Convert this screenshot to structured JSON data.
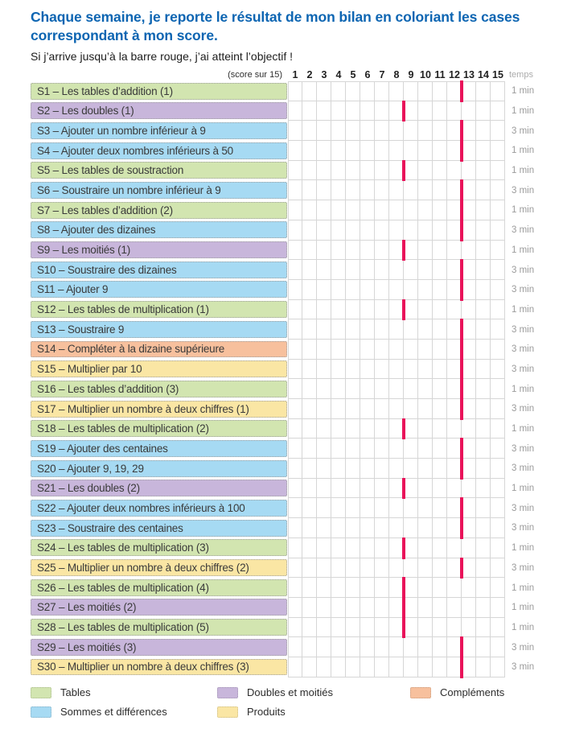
{
  "header": {
    "title": "Chaque semaine, je reporte le résultat de mon bilan en coloriant les cases correspondant à mon score.",
    "subtitle": "Si j’arrive jusqu’à la barre rouge, j’ai atteint l’objectif !",
    "score_label": "(score sur 15)",
    "columns": [
      "1",
      "2",
      "3",
      "4",
      "5",
      "6",
      "7",
      "8",
      "9",
      "10",
      "11",
      "12",
      "13",
      "14",
      "15"
    ],
    "time_header": "temps"
  },
  "colors": {
    "title_blue": "#0d65b2",
    "target_bar_red": "#e9125a",
    "grid_line": "#d6d6d6"
  },
  "categories": {
    "tables": {
      "label": "Tables",
      "color": "#d2e5b0"
    },
    "sommes": {
      "label": "Sommes et différences",
      "color": "#a6daf3"
    },
    "doubles": {
      "label": "Doubles et moitiés",
      "color": "#c8b6db"
    },
    "produits": {
      "label": "Produits",
      "color": "#fae6a4"
    },
    "complements": {
      "label": "Compléments",
      "color": "#f7c09d"
    }
  },
  "rows": [
    {
      "label": "S1 – Les tables d’addition (1)",
      "category": "tables",
      "target": 12,
      "time": "1 min"
    },
    {
      "label": "S2 – Les doubles (1)",
      "category": "doubles",
      "target": 8,
      "time": "1 min"
    },
    {
      "label": "S3 – Ajouter un nombre inférieur à 9",
      "category": "sommes",
      "target": 12,
      "time": "3 min"
    },
    {
      "label": "S4 – Ajouter deux nombres inférieurs à 50",
      "category": "sommes",
      "target": 12,
      "time": "1 min"
    },
    {
      "label": "S5 – Les tables de soustraction",
      "category": "tables",
      "target": 8,
      "time": "1 min"
    },
    {
      "label": "S6 – Soustraire un nombre inférieur à 9",
      "category": "sommes",
      "target": 12,
      "time": "3 min"
    },
    {
      "label": "S7 – Les tables d’addition (2)",
      "category": "tables",
      "target": 12,
      "time": "1 min"
    },
    {
      "label": "S8 – Ajouter des dizaines",
      "category": "sommes",
      "target": 12,
      "time": "3 min"
    },
    {
      "label": "S9 – Les moitiés (1)",
      "category": "doubles",
      "target": 8,
      "time": "1 min"
    },
    {
      "label": "S10 – Soustraire des dizaines",
      "category": "sommes",
      "target": 12,
      "time": "3 min"
    },
    {
      "label": "S11 – Ajouter 9",
      "category": "sommes",
      "target": 12,
      "time": "3 min"
    },
    {
      "label": "S12 – Les tables de multiplication (1)",
      "category": "tables",
      "target": 8,
      "time": "1 min"
    },
    {
      "label": "S13 – Soustraire 9",
      "category": "sommes",
      "target": 12,
      "time": "3 min"
    },
    {
      "label": "S14 – Compléter à la dizaine supérieure",
      "category": "complements",
      "target": 12,
      "time": "3 min"
    },
    {
      "label": "S15 – Multiplier par 10",
      "category": "produits",
      "target": 12,
      "time": "3 min"
    },
    {
      "label": "S16 – Les tables d’addition (3)",
      "category": "tables",
      "target": 12,
      "time": "1 min"
    },
    {
      "label": "S17 – Multiplier un nombre à deux chiffres (1)",
      "category": "produits",
      "target": 12,
      "time": "3 min"
    },
    {
      "label": "S18 – Les tables de multiplication (2)",
      "category": "tables",
      "target": 8,
      "time": "1 min"
    },
    {
      "label": "S19 – Ajouter des centaines",
      "category": "sommes",
      "target": 12,
      "time": "3 min"
    },
    {
      "label": "S20 – Ajouter 9, 19, 29",
      "category": "sommes",
      "target": 12,
      "time": "3 min"
    },
    {
      "label": "S21 – Les doubles (2)",
      "category": "doubles",
      "target": 8,
      "time": "1 min"
    },
    {
      "label": "S22 – Ajouter deux nombres inférieurs à 100",
      "category": "sommes",
      "target": 12,
      "time": "3 min"
    },
    {
      "label": "S23 – Soustraire des centaines",
      "category": "sommes",
      "target": 12,
      "time": "3 min"
    },
    {
      "label": "S24 – Les tables de multiplication (3)",
      "category": "tables",
      "target": 8,
      "time": "1 min"
    },
    {
      "label": "S25 – Multiplier un nombre à deux chiffres (2)",
      "category": "produits",
      "target": 12,
      "time": "3 min"
    },
    {
      "label": "S26 – Les tables de multiplication (4)",
      "category": "tables",
      "target": 8,
      "time": "1 min"
    },
    {
      "label": "S27 – Les moitiés (2)",
      "category": "doubles",
      "target": 8,
      "time": "1 min"
    },
    {
      "label": "S28 – Les tables de multiplication (5)",
      "category": "tables",
      "target": 8,
      "time": "1 min"
    },
    {
      "label": "S29 – Les moitiés (3)",
      "category": "doubles",
      "target": 12,
      "time": "3 min"
    },
    {
      "label": "S30 – Multiplier un nombre à deux chiffres (3)",
      "category": "produits",
      "target": 12,
      "time": "3 min"
    }
  ],
  "legend": {
    "items": [
      {
        "category": "tables"
      },
      {
        "category": "sommes"
      },
      {
        "category": "doubles"
      },
      {
        "category": "produits"
      },
      {
        "category": "complements"
      }
    ]
  }
}
